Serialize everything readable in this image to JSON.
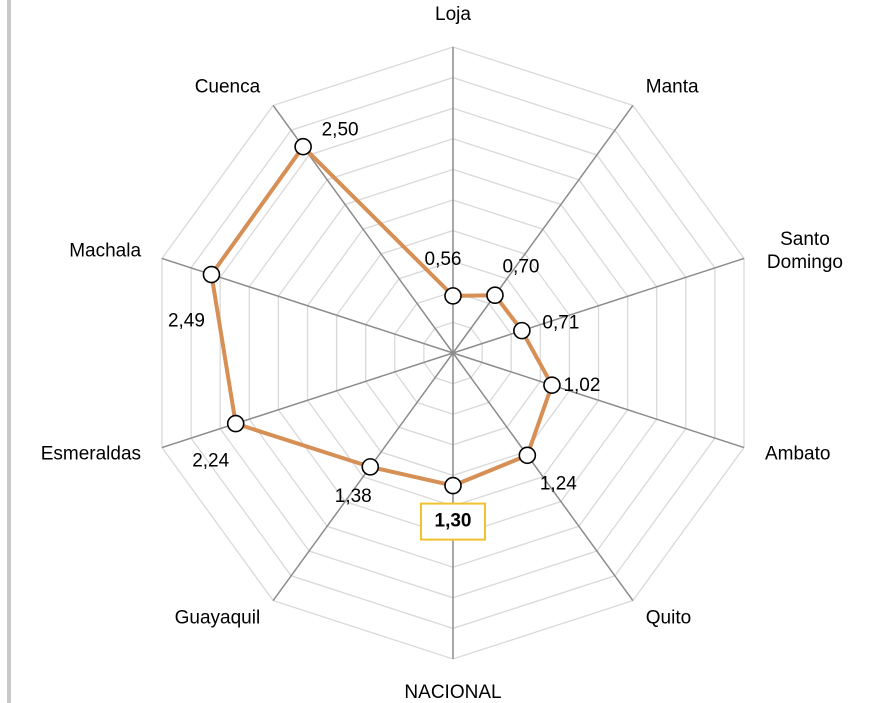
{
  "chart_data": {
    "type": "radar",
    "categories": [
      "Loja",
      "Manta",
      "Santo Domingo",
      "Ambato",
      "Quito",
      "NACIONAL",
      "Guayaquil",
      "Esmeraldas",
      "Machala",
      "Cuenca"
    ],
    "values": [
      0.56,
      0.7,
      0.71,
      1.02,
      1.24,
      1.3,
      1.38,
      2.24,
      2.49,
      2.5
    ],
    "value_labels": [
      "0,56",
      "0,70",
      "0,71",
      "1,02",
      "1,24",
      "1,30",
      "1,38",
      "2,24",
      "2,49",
      "2,50"
    ],
    "color": "#d68f55",
    "rlim": [
      0,
      3
    ],
    "rticks": [
      0.3,
      0.6,
      0.9,
      1.2,
      1.5,
      1.8,
      2.1,
      2.4,
      2.7,
      3.0
    ],
    "highlight": "NACIONAL",
    "highlight_color": "#f2c12e"
  }
}
